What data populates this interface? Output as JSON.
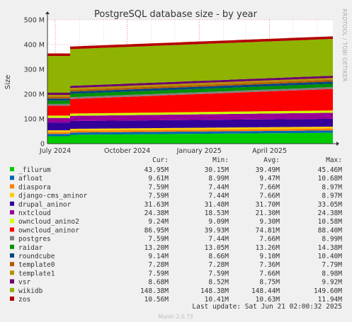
{
  "chart_data": {
    "type": "area",
    "title": "PostgreSQL database size - by year",
    "ylabel": "Size",
    "side_label": "RRDTOOL / TOBI OETIKER",
    "ylim": [
      0,
      500000000
    ],
    "y_ticks": [
      0,
      100000000,
      200000000,
      300000000,
      400000000,
      500000000
    ],
    "y_tick_labels": [
      "0",
      "100 M",
      "200 M",
      "300 M",
      "400 M",
      "500 M"
    ],
    "x_range": [
      "2024-06-21",
      "2025-06-21"
    ],
    "x_ticks": [
      {
        "date": "2024-07-01",
        "label": "July 2024"
      },
      {
        "date": "2024-10-01",
        "label": "October 2024"
      },
      {
        "date": "2025-01-01",
        "label": "January 2025"
      },
      {
        "date": "2025-04-01",
        "label": "April 2025"
      }
    ],
    "x_bump_date": "2024-07-20",
    "columns": [
      "Cur:",
      "Min:",
      "Avg:",
      "Max:"
    ],
    "series": [
      {
        "name": "_filurum",
        "color": "#00cc00",
        "start": 30150000,
        "end": 43950000,
        "cur": "43.95M",
        "min": "30.15M",
        "avg": "39.49M",
        "max": "45.46M"
      },
      {
        "name": "afloat",
        "color": "#0066b3",
        "start": 8990000,
        "end": 9610000,
        "cur": "9.61M",
        "min": "8.99M",
        "avg": "9.47M",
        "max": "10.68M"
      },
      {
        "name": "diaspora",
        "color": "#ff8000",
        "start": 7440000,
        "end": 7590000,
        "cur": "7.59M",
        "min": "7.44M",
        "avg": "7.66M",
        "max": "8.97M"
      },
      {
        "name": "django-cms_aninor",
        "color": "#ffcc00",
        "start": 7440000,
        "end": 7590000,
        "cur": "7.59M",
        "min": "7.44M",
        "avg": "7.66M",
        "max": "8.97M"
      },
      {
        "name": "drupal_aninor",
        "color": "#330099",
        "start": 31480000,
        "end": 31630000,
        "cur": "31.63M",
        "min": "31.48M",
        "avg": "31.70M",
        "max": "33.05M"
      },
      {
        "name": "nxtcloud",
        "color": "#990099",
        "start": 18530000,
        "end": 24380000,
        "cur": "24.38M",
        "min": "18.53M",
        "avg": "21.30M",
        "max": "24.38M"
      },
      {
        "name": "owncloud_anino2",
        "color": "#ccff00",
        "start": 9090000,
        "end": 9240000,
        "cur": "9.24M",
        "min": "9.09M",
        "avg": "9.30M",
        "max": "10.58M"
      },
      {
        "name": "owncloud_aninor",
        "color": "#ff0000",
        "start": 39930000,
        "end": 86950000,
        "cur": "86.95M",
        "min": "39.93M",
        "avg": "74.81M",
        "max": "88.40M"
      },
      {
        "name": "postgres",
        "color": "#808080",
        "start": 7440000,
        "end": 7590000,
        "cur": "7.59M",
        "min": "7.44M",
        "avg": "7.66M",
        "max": "8.99M"
      },
      {
        "name": "raidar",
        "color": "#008f00",
        "start": 13050000,
        "end": 13200000,
        "cur": "13.20M",
        "min": "13.05M",
        "avg": "13.26M",
        "max": "14.38M"
      },
      {
        "name": "roundcube",
        "color": "#00487d",
        "start": 8660000,
        "end": 9140000,
        "cur": "9.14M",
        "min": "8.66M",
        "avg": "9.10M",
        "max": "10.40M"
      },
      {
        "name": "template0",
        "color": "#b35a00",
        "start": 7280000,
        "end": 7280000,
        "cur": "7.28M",
        "min": "7.28M",
        "avg": "7.36M",
        "max": "7.79M"
      },
      {
        "name": "template1",
        "color": "#b38f00",
        "start": 7590000,
        "end": 7590000,
        "cur": "7.59M",
        "min": "7.59M",
        "avg": "7.66M",
        "max": "8.98M"
      },
      {
        "name": "vsr",
        "color": "#6b006b",
        "start": 8520000,
        "end": 8680000,
        "cur": "8.68M",
        "min": "8.52M",
        "avg": "8.75M",
        "max": "9.92M"
      },
      {
        "name": "wikidb",
        "color": "#8fb300",
        "start": 148380000,
        "end": 148380000,
        "cur": "148.38M",
        "min": "148.38M",
        "avg": "148.44M",
        "max": "149.60M"
      },
      {
        "name": "zos",
        "color": "#b30000",
        "start": 10410000,
        "end": 10560000,
        "cur": "10.56M",
        "min": "10.41M",
        "avg": "10.63M",
        "max": "11.94M"
      }
    ],
    "last_update": "Last update: Sat Jun 21 02:00:32 2025",
    "version": "Munin 2.0.73"
  }
}
